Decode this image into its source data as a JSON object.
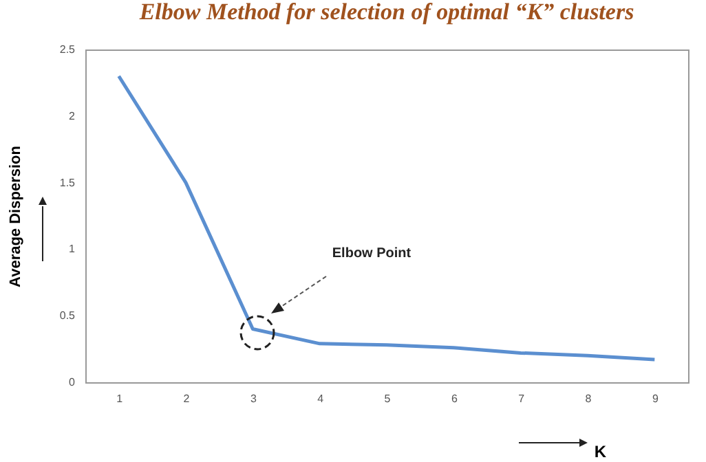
{
  "chart_data": {
    "type": "line",
    "title": "Elbow Method for selection of optimal “K” clusters",
    "xlabel": "K",
    "ylabel": "Average Dispersion",
    "categories": [
      "1",
      "2",
      "3",
      "4",
      "5",
      "6",
      "7",
      "8",
      "9"
    ],
    "series": [
      {
        "color": "#5b8fd0",
        "values": [
          2.3,
          1.5,
          0.4,
          0.29,
          0.28,
          0.26,
          0.22,
          0.2,
          0.17
        ]
      }
    ],
    "ylim": [
      0,
      2.5
    ],
    "yticks": [
      0,
      0.5,
      1,
      1.5,
      2,
      2.5
    ],
    "annotations": [
      "Elbow Point"
    ]
  }
}
